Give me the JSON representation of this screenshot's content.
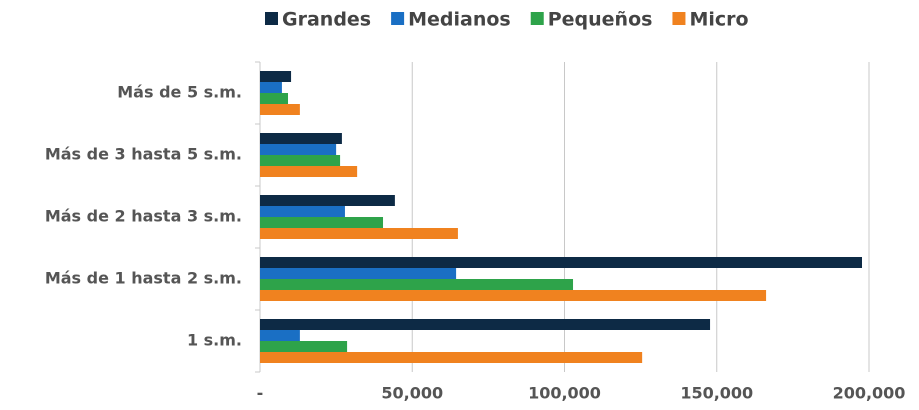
{
  "chart_data": {
    "type": "bar",
    "orientation": "horizontal",
    "categories": [
      "Más de 5 s.m.",
      "Más de 3 hasta 5 s.m.",
      "Más de 2 hasta 3 s.m.",
      "Más de 1 hasta 2 s.m.",
      "1  s.m."
    ],
    "series": [
      {
        "name": "Grandes",
        "color": "#0d2a45",
        "values": [
          10200,
          26900,
          44300,
          197700,
          147800
        ]
      },
      {
        "name": "Medianos",
        "color": "#1a6fc4",
        "values": [
          7200,
          25000,
          27900,
          64400,
          13100
        ]
      },
      {
        "name": "Pequeños",
        "color": "#2ea34a",
        "values": [
          9200,
          26300,
          40400,
          102800,
          28600
        ]
      },
      {
        "name": "Micro",
        "color": "#f0821f",
        "values": [
          13100,
          31900,
          65000,
          166200,
          125500
        ]
      }
    ],
    "xlim": [
      0,
      200000
    ],
    "xticks": [
      {
        "value": 0,
        "label": "-"
      },
      {
        "value": 50000,
        "label": "50,000"
      },
      {
        "value": 100000,
        "label": "100,000"
      },
      {
        "value": 150000,
        "label": "150,000"
      },
      {
        "value": 200000,
        "label": "200,000"
      }
    ],
    "grid": true,
    "legend": "top"
  }
}
